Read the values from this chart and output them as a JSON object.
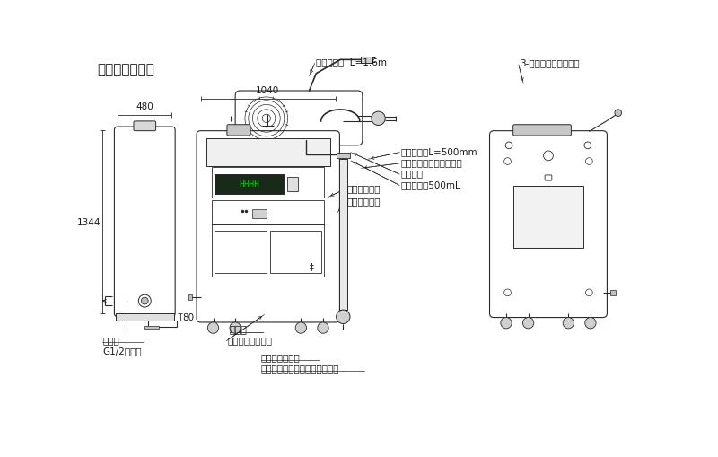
{
  "title": "本体各部の名称",
  "bg_color": "#ffffff",
  "line_color": "#2a2a2a",
  "text_color": "#1a1a1a",
  "title_fontsize": 11,
  "label_fontsize": 7.5,
  "dim_fontsize": 7.5,
  "labels": {
    "dengen_cord": "電源コード  L=1.6m",
    "hakidashi": "吐出パイプL=500mm",
    "hojo_cover": "補助液タンク収納カバー",
    "cap": "キャップ",
    "hojo_vol": "補助液容量500mL",
    "kinsetsu": "近接センサー",
    "dengen_sw": "電源スイッチ",
    "settei_tobira": "設定扉",
    "naibusettei": "内部に設定パネル",
    "shower_head": "シャワーヘッド",
    "shower_switch": "シャワー・ストレート切替付き",
    "kyusui": "給水口",
    "kyusui2": "G1/2オネジ",
    "kabe": "3-壁掛けフック取付穴"
  },
  "dimensions": {
    "width_left": "480",
    "width_center": "1040",
    "height_left": "1344",
    "height_bottom": "80"
  }
}
